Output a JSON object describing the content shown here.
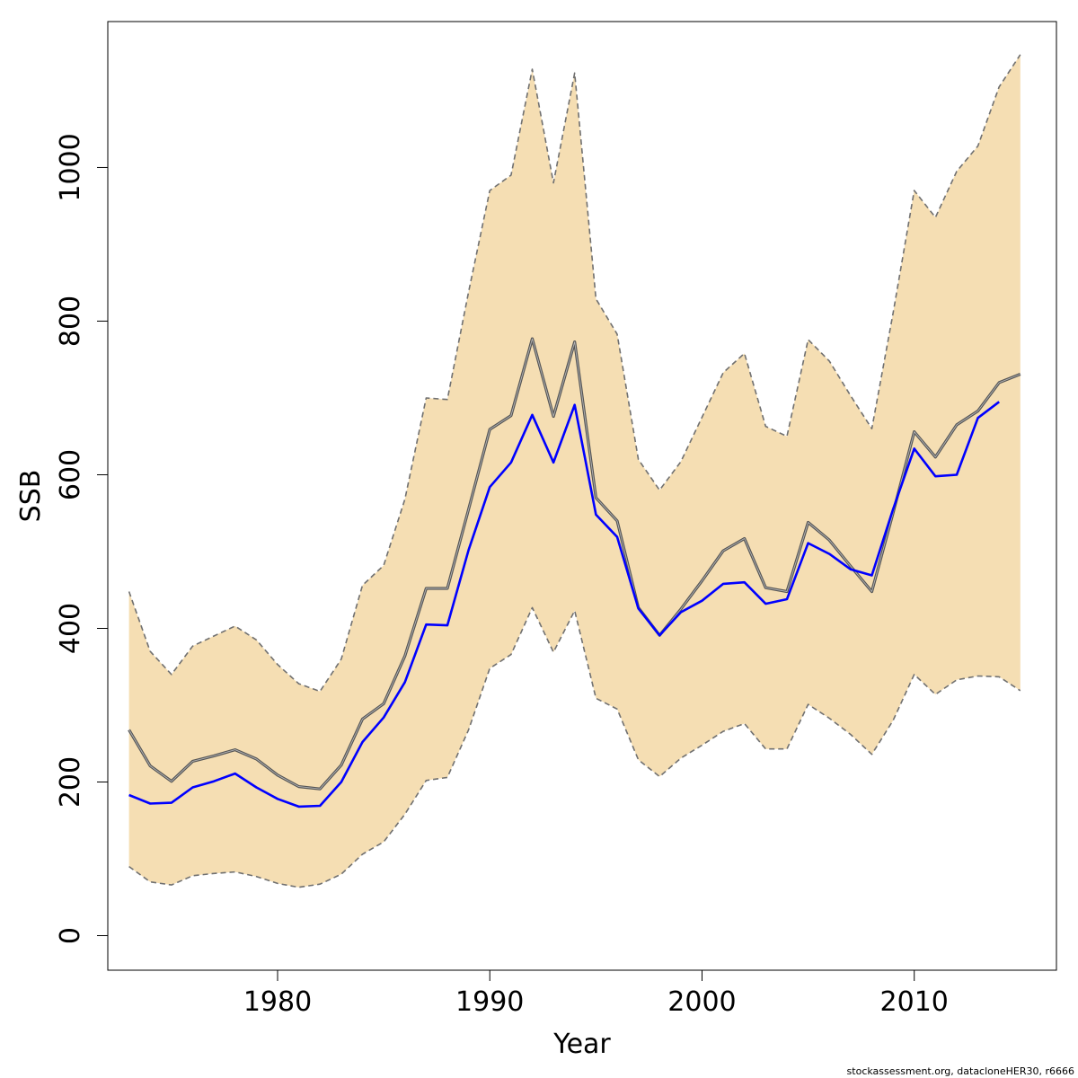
{
  "chart_data": {
    "type": "line",
    "title": "",
    "xlabel": "Year",
    "ylabel": "SSB",
    "xlim": [
      1972,
      2016.7
    ],
    "ylim": [
      -45,
      1190
    ],
    "x_ticks": [
      1980,
      1990,
      2000,
      2010
    ],
    "y_ticks": [
      0,
      200,
      400,
      600,
      800,
      1000
    ],
    "grid": false,
    "legend": "none",
    "x": [
      1973,
      1974,
      1975,
      1976,
      1977,
      1978,
      1979,
      1980,
      1981,
      1982,
      1983,
      1984,
      1985,
      1986,
      1987,
      1988,
      1989,
      1990,
      1991,
      1992,
      1993,
      1994,
      1995,
      1996,
      1997,
      1998,
      1999,
      2000,
      2001,
      2002,
      2003,
      2004,
      2005,
      2006,
      2007,
      2008,
      2009,
      2010,
      2011,
      2012,
      2013,
      2014,
      2015
    ],
    "series": [
      {
        "role": "upper-bound",
        "style": "dashed",
        "color": "#707070",
        "values": [
          448,
          370,
          340,
          377,
          390,
          403,
          385,
          353,
          328,
          318,
          360,
          456,
          482,
          568,
          700,
          698,
          838,
          970,
          990,
          1128,
          980,
          1123,
          829,
          783,
          620,
          580,
          617,
          675,
          733,
          758,
          663,
          650,
          776,
          748,
          703,
          660,
          810,
          970,
          935,
          995,
          1028,
          1105,
          1147
        ]
      },
      {
        "role": "lower-bound",
        "style": "dashed",
        "color": "#707070",
        "values": [
          90,
          70,
          66,
          78,
          81,
          83,
          77,
          68,
          63,
          67,
          80,
          106,
          122,
          158,
          202,
          206,
          268,
          348,
          366,
          427,
          369,
          423,
          309,
          295,
          229,
          207,
          231,
          248,
          266,
          276,
          243,
          243,
          301,
          283,
          262,
          236,
          280,
          340,
          314,
          333,
          338,
          337,
          319
        ]
      },
      {
        "role": "estimate",
        "style": "solid",
        "color": "#555555",
        "values": [
          268,
          221,
          201,
          227,
          234,
          242,
          230,
          209,
          194,
          191,
          222,
          282,
          302,
          364,
          452,
          452,
          555,
          659,
          677,
          777,
          676,
          773,
          570,
          540,
          427,
          391,
          425,
          462,
          501,
          517,
          453,
          448,
          538,
          515,
          481,
          448,
          550,
          656,
          623,
          665,
          683,
          720,
          731
        ]
      },
      {
        "role": "alternative",
        "style": "solid",
        "color": "#0000ff",
        "values": [
          183,
          172,
          173,
          193,
          201,
          211,
          193,
          178,
          168,
          169,
          200,
          252,
          284,
          330,
          405,
          404,
          502,
          584,
          616,
          678,
          616,
          691,
          548,
          519,
          426,
          391,
          421,
          436,
          458,
          460,
          432,
          438,
          511,
          497,
          477,
          469,
          555,
          634,
          598,
          600,
          674,
          695,
          null
        ]
      }
    ],
    "band": {
      "fill": "#f5deb3",
      "between": [
        "upper-bound",
        "lower-bound"
      ]
    }
  },
  "footer": {
    "note": "stockassessment.org, datacloneHER30, r6666"
  }
}
